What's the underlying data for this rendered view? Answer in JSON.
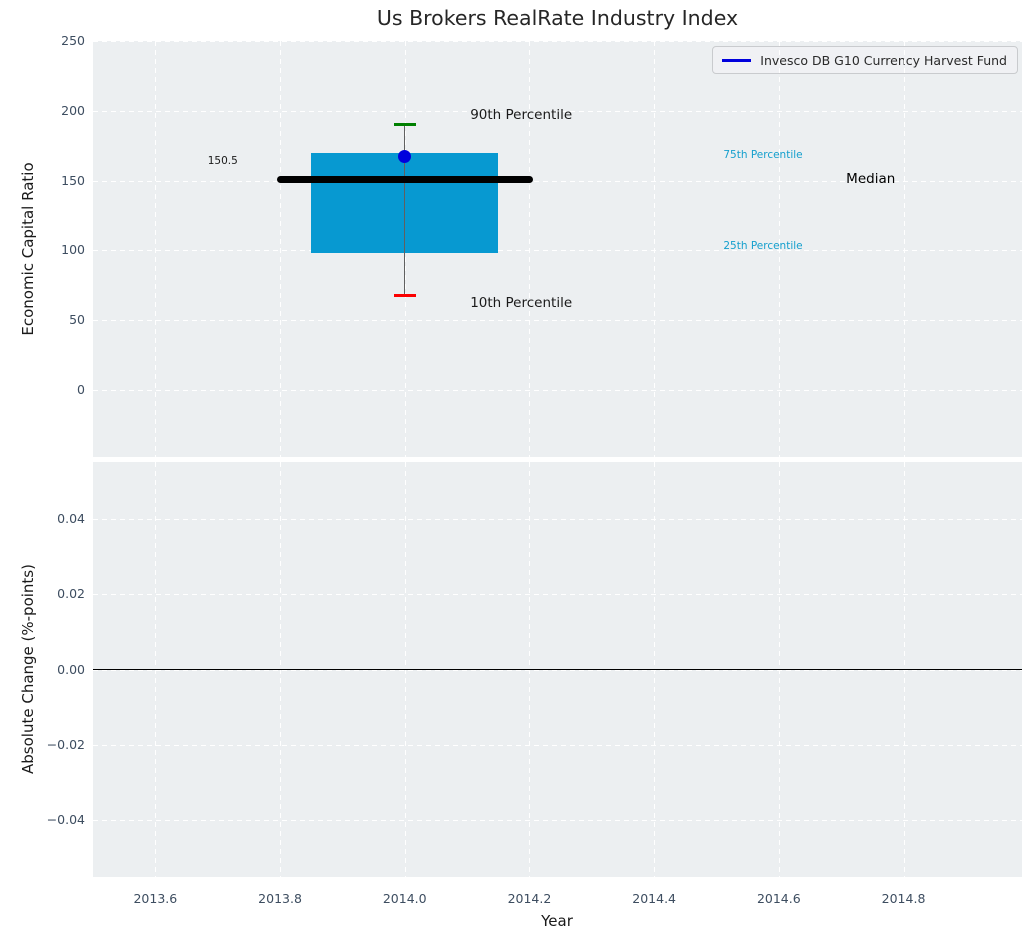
{
  "title": "Us Brokers RealRate Industry Index",
  "legend": {
    "label": "Invesco DB G10 Currency Harvest Fund"
  },
  "colors": {
    "figure_bg": "#ffffff",
    "plot_bg": "#eceff1",
    "grid": "#ffffff",
    "tick_label": "#3d4d60",
    "box_fill": "#0799d1",
    "median_line": "#000000",
    "whisker": "#606060",
    "p90_cap": "#008000",
    "p10_cap": "#fb0000",
    "point": "#0000dd",
    "legend_line": "#0000dd",
    "percentile_label": "#149fcd",
    "zero_line": "#000000"
  },
  "chart_data": [
    {
      "type": "boxplot",
      "title": "Us Brokers RealRate Industry Index",
      "ylabel": "Economic Capital Ratio",
      "ylim": [
        -48,
        250
      ],
      "xlim": [
        2013.5,
        2014.99
      ],
      "grid": "white dashed",
      "legend_position": "upper right",
      "yticks": [
        {
          "v": 250,
          "label": "250"
        },
        {
          "v": 200,
          "label": "200"
        },
        {
          "v": 150,
          "label": "150"
        },
        {
          "v": 100,
          "label": "100"
        },
        {
          "v": 50,
          "label": "50"
        },
        {
          "v": 0,
          "label": "0"
        }
      ],
      "box": {
        "x": 2014.0,
        "box_left": 2013.85,
        "box_right": 2014.15,
        "p10": 68,
        "p25": 98,
        "median": 150.5,
        "p75": 170,
        "p90": 190,
        "median_line_span": [
          2013.8,
          2014.2
        ],
        "cap_half_width": 0.018
      },
      "series": [
        {
          "name": "Invesco DB G10 Currency Harvest Fund",
          "x": [
            2014.0
          ],
          "values": [
            167
          ]
        }
      ],
      "annotations": [
        {
          "text": "150.5",
          "x": 2013.684,
          "y": 164,
          "size": 10.5,
          "color": "#1a1a1a"
        },
        {
          "text": "90th Percentile",
          "x": 2014.105,
          "y": 197,
          "size": 13.5,
          "color": "#1a1a1a"
        },
        {
          "text": "10th Percentile",
          "x": 2014.105,
          "y": 62,
          "size": 13.5,
          "color": "#1a1a1a"
        },
        {
          "text": "75th Percentile",
          "x": 2014.511,
          "y": 168,
          "size": 10.5,
          "color": "#149fcd"
        },
        {
          "text": "25th Percentile",
          "x": 2014.511,
          "y": 103.5,
          "size": 10.5,
          "color": "#149fcd"
        },
        {
          "text": "Median",
          "x": 2014.708,
          "y": 151.5,
          "size": 13.5,
          "color": "#000000"
        }
      ]
    },
    {
      "type": "line",
      "ylabel": "Absolute Change (%-points)",
      "xlabel": "Year",
      "ylim": [
        -0.055,
        0.055
      ],
      "xlim": [
        2013.5,
        2014.99
      ],
      "grid": "white dashed",
      "zero_line": 0,
      "yticks": [
        {
          "v": 0.04,
          "label": "0.04"
        },
        {
          "v": 0.02,
          "label": "0.02"
        },
        {
          "v": 0,
          "label": "0.00"
        },
        {
          "v": -0.02,
          "label": "−0.02"
        },
        {
          "v": -0.04,
          "label": "−0.04"
        }
      ],
      "xticks": [
        {
          "v": 2013.6,
          "label": "2013.6"
        },
        {
          "v": 2013.8,
          "label": "2013.8"
        },
        {
          "v": 2014.0,
          "label": "2014.0"
        },
        {
          "v": 2014.2,
          "label": "2014.2"
        },
        {
          "v": 2014.4,
          "label": "2014.4"
        },
        {
          "v": 2014.6,
          "label": "2014.6"
        },
        {
          "v": 2014.8,
          "label": "2014.8"
        }
      ],
      "series": []
    }
  ]
}
